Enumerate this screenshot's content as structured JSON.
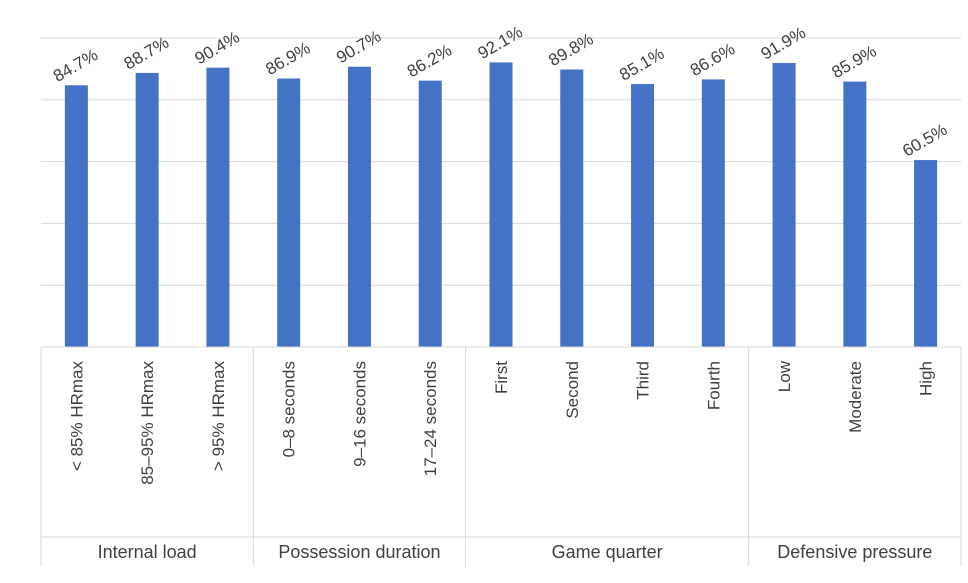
{
  "chart_data": {
    "type": "bar",
    "title": "",
    "xlabel": "",
    "ylabel": "",
    "ylim": [
      0,
      100
    ],
    "grid": true,
    "bar_color": "#4472C4",
    "groups": [
      {
        "label": "Internal load",
        "categories": [
          "< 85% HRmax",
          "85–95% HRmax",
          "> 95% HRmax"
        ]
      },
      {
        "label": "Possession duration",
        "categories": [
          "0–8 seconds",
          "9–16 seconds",
          "17–24 seconds"
        ]
      },
      {
        "label": "Game quarter",
        "categories": [
          "First",
          "Second",
          "Third",
          "Fourth"
        ]
      },
      {
        "label": "Defensive pressure",
        "categories": [
          "Low",
          "Moderate",
          "High"
        ]
      }
    ],
    "categories": [
      "< 85% HRmax",
      "85–95% HRmax",
      "> 95% HRmax",
      "0–8 seconds",
      "9–16 seconds",
      "17–24 seconds",
      "First",
      "Second",
      "Third",
      "Fourth",
      "Low",
      "Moderate",
      "High"
    ],
    "values": [
      84.7,
      88.7,
      90.4,
      86.9,
      90.7,
      86.2,
      92.1,
      89.8,
      85.1,
      86.6,
      91.9,
      85.9,
      60.5
    ],
    "data_labels": [
      "84.7%",
      "88.7%",
      "90.4%",
      "86.9%",
      "90.7%",
      "86.2%",
      "92.1%",
      "89.8%",
      "85.1%",
      "86.6%",
      "91.9%",
      "85.9%",
      "60.5%"
    ]
  }
}
